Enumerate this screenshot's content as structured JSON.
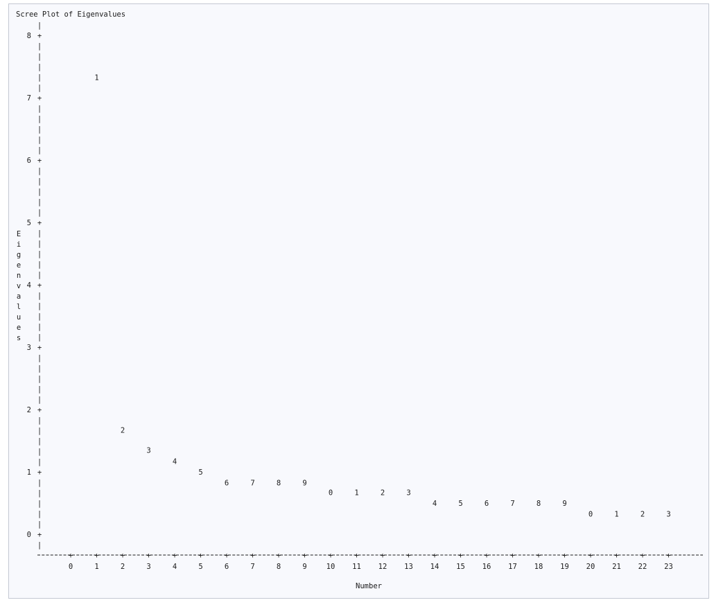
{
  "chart_data": {
    "type": "scatter",
    "title": "Scree Plot of Eigenvalues",
    "xlabel": "Number",
    "ylabel": "Eigenvalues",
    "xlim": [
      0,
      23
    ],
    "ylim": [
      0,
      8
    ],
    "x_ticks": [
      0,
      1,
      2,
      3,
      4,
      5,
      6,
      7,
      8,
      9,
      10,
      11,
      12,
      13,
      14,
      15,
      16,
      17,
      18,
      19,
      20,
      21,
      22,
      23
    ],
    "y_ticks": [
      0,
      1,
      2,
      3,
      4,
      5,
      6,
      7,
      8
    ],
    "grid": false,
    "axis_chars": {
      "tick": "+",
      "vertical": "|",
      "horizontal": "-"
    },
    "points": [
      {
        "x": 1,
        "y": 7.33,
        "symbol": "1"
      },
      {
        "x": 2,
        "y": 1.67,
        "symbol": "2"
      },
      {
        "x": 3,
        "y": 1.35,
        "symbol": "3"
      },
      {
        "x": 4,
        "y": 1.17,
        "symbol": "4"
      },
      {
        "x": 5,
        "y": 1.0,
        "symbol": "5"
      },
      {
        "x": 6,
        "y": 0.83,
        "symbol": "6"
      },
      {
        "x": 7,
        "y": 0.83,
        "symbol": "7"
      },
      {
        "x": 8,
        "y": 0.83,
        "symbol": "8"
      },
      {
        "x": 9,
        "y": 0.83,
        "symbol": "9"
      },
      {
        "x": 10,
        "y": 0.67,
        "symbol": "0"
      },
      {
        "x": 11,
        "y": 0.67,
        "symbol": "1"
      },
      {
        "x": 12,
        "y": 0.67,
        "symbol": "2"
      },
      {
        "x": 13,
        "y": 0.67,
        "symbol": "3"
      },
      {
        "x": 14,
        "y": 0.5,
        "symbol": "4"
      },
      {
        "x": 15,
        "y": 0.5,
        "symbol": "5"
      },
      {
        "x": 16,
        "y": 0.5,
        "symbol": "6"
      },
      {
        "x": 17,
        "y": 0.5,
        "symbol": "7"
      },
      {
        "x": 18,
        "y": 0.5,
        "symbol": "8"
      },
      {
        "x": 19,
        "y": 0.5,
        "symbol": "9"
      },
      {
        "x": 20,
        "y": 0.33,
        "symbol": "0"
      },
      {
        "x": 21,
        "y": 0.33,
        "symbol": "1"
      },
      {
        "x": 22,
        "y": 0.33,
        "symbol": "2"
      },
      {
        "x": 23,
        "y": 0.33,
        "symbol": "3"
      }
    ]
  }
}
